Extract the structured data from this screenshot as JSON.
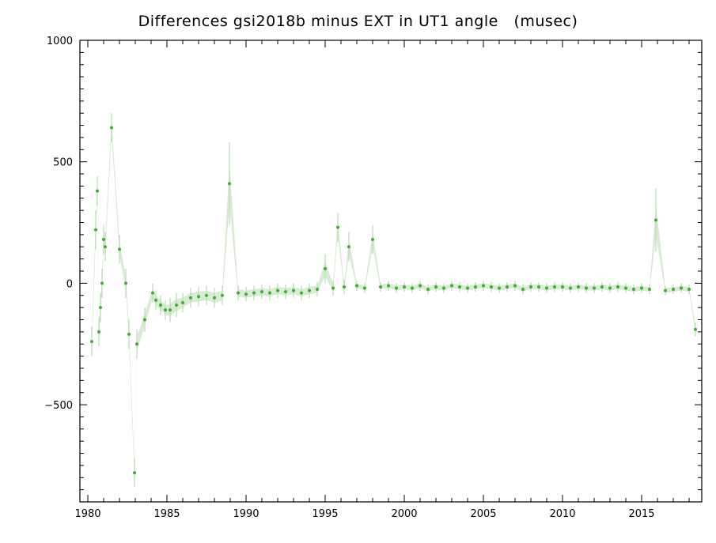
{
  "chart_data": {
    "type": "scatter",
    "title": "Differences gsi2018b minus EXT in UT1 angle   (musec)",
    "xlabel": "",
    "ylabel": "",
    "xlim": [
      1979.5,
      2018.8
    ],
    "ylim": [
      -900,
      1000
    ],
    "xticks": [
      1980,
      1985,
      1990,
      1995,
      2000,
      2005,
      2010,
      2015
    ],
    "yticks": [
      -500,
      0,
      500,
      1000
    ],
    "grid": false,
    "legend": "none",
    "colors": {
      "points": "#3cb02e",
      "error_bars": "#b9dbb3",
      "axes": "#000000"
    },
    "series": [
      {
        "x": [
          1980.25,
          1980.5,
          1980.6,
          1980.7,
          1980.8,
          1980.9,
          1981.0,
          1981.1,
          1981.5,
          1982.0,
          1982.4,
          1982.6,
          1982.95,
          1983.1,
          1983.6,
          1984.1,
          1984.3,
          1984.6,
          1984.9,
          1985.2,
          1985.6,
          1986.0,
          1986.5,
          1987.0,
          1987.5,
          1988.0,
          1988.5,
          1988.95,
          1989.5,
          1990.0,
          1990.5,
          1991.0,
          1991.5,
          1992.0,
          1992.5,
          1993.0,
          1993.5,
          1994.0,
          1994.5,
          1995.0,
          1995.5,
          1995.8,
          1996.2,
          1996.5,
          1997.0,
          1997.5,
          1998.0,
          1998.5,
          1999.0,
          1999.5,
          2000.0,
          2000.5,
          2001.0,
          2001.5,
          2002.0,
          2002.5,
          2003.0,
          2003.5,
          2004.0,
          2004.5,
          2005.0,
          2005.5,
          2006.0,
          2006.5,
          2007.0,
          2007.5,
          2008.0,
          2008.5,
          2009.0,
          2009.5,
          2010.0,
          2010.5,
          2011.0,
          2011.5,
          2012.0,
          2012.5,
          2013.0,
          2013.5,
          2014.0,
          2014.5,
          2015.0,
          2015.5,
          2015.9,
          2016.5,
          2017.0,
          2017.5,
          2018.0,
          2018.4
        ],
        "y": [
          -240,
          220,
          380,
          -200,
          -100,
          0,
          180,
          150,
          640,
          140,
          0,
          -210,
          -780,
          -250,
          -150,
          -40,
          -70,
          -90,
          -110,
          -110,
          -90,
          -80,
          -60,
          -55,
          -50,
          -60,
          -50,
          410,
          -40,
          -45,
          -40,
          -35,
          -40,
          -30,
          -35,
          -30,
          -40,
          -30,
          -25,
          60,
          -20,
          230,
          -15,
          150,
          -10,
          -20,
          180,
          -15,
          -10,
          -20,
          -15,
          -20,
          -10,
          -25,
          -15,
          -20,
          -10,
          -15,
          -20,
          -15,
          -10,
          -15,
          -20,
          -15,
          -10,
          -25,
          -15,
          -15,
          -20,
          -15,
          -15,
          -20,
          -15,
          -20,
          -20,
          -15,
          -20,
          -15,
          -20,
          -25,
          -20,
          -25,
          260,
          -30,
          -25,
          -20,
          -25,
          -190
        ],
        "error": [
          60,
          80,
          60,
          60,
          60,
          60,
          60,
          60,
          60,
          60,
          60,
          60,
          60,
          60,
          50,
          40,
          40,
          40,
          40,
          50,
          50,
          40,
          40,
          40,
          40,
          40,
          40,
          170,
          30,
          30,
          30,
          30,
          30,
          30,
          30,
          30,
          30,
          30,
          30,
          60,
          30,
          60,
          30,
          60,
          20,
          20,
          60,
          20,
          20,
          20,
          20,
          20,
          20,
          20,
          20,
          20,
          20,
          20,
          20,
          20,
          20,
          20,
          20,
          20,
          20,
          20,
          20,
          20,
          20,
          20,
          20,
          20,
          20,
          20,
          20,
          20,
          20,
          20,
          20,
          20,
          20,
          20,
          130,
          20,
          20,
          20,
          20,
          30
        ]
      }
    ]
  }
}
